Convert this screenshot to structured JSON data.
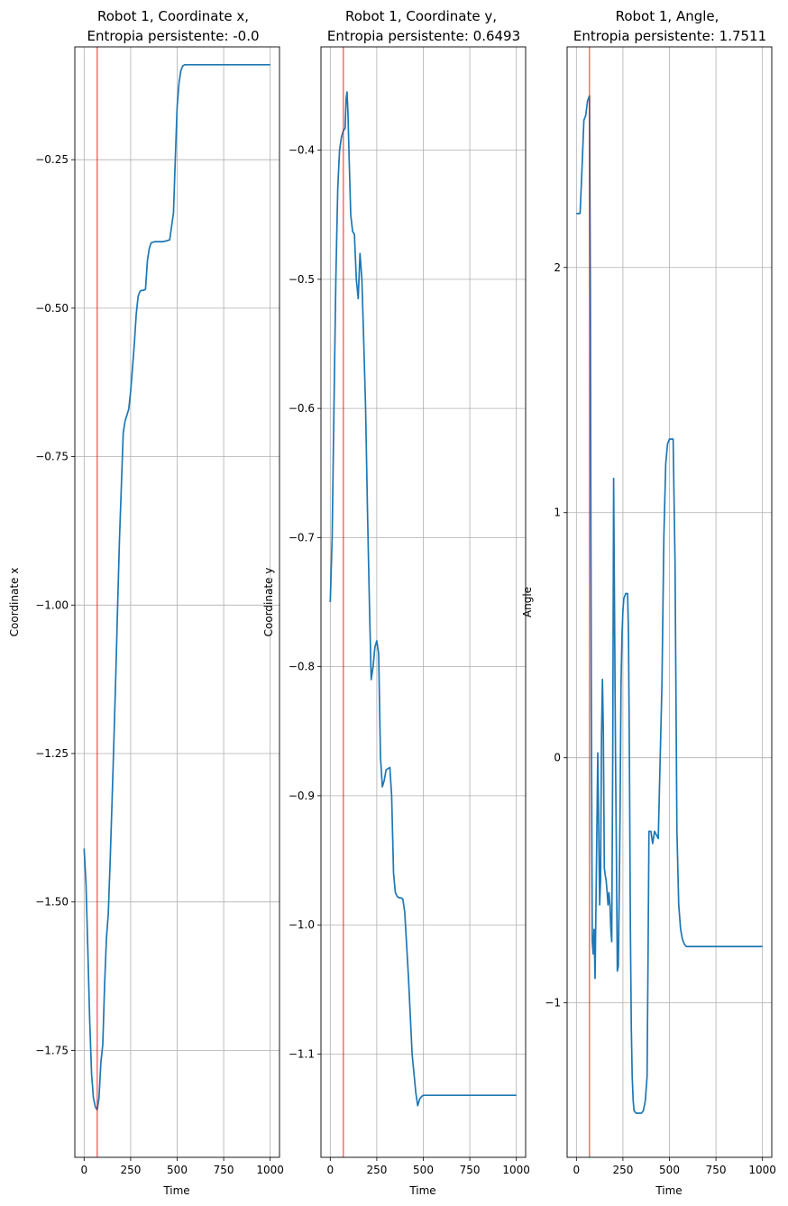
{
  "figure": {
    "background": "#ffffff"
  },
  "chart_data": [
    {
      "type": "line",
      "title_line1": "Robot 1, Coordinate x,",
      "title_line2": "Entropia persistente: -0.0",
      "xlabel": "Time",
      "ylabel": "Coordinate x",
      "xlim": [
        -50,
        1050
      ],
      "ylim": [
        -1.93,
        -0.06
      ],
      "xticks": [
        0,
        250,
        500,
        750,
        1000
      ],
      "xtick_labels": [
        "0",
        "250",
        "500",
        "750",
        "1000"
      ],
      "yticks": [
        -1.75,
        -1.5,
        -1.25,
        -1.0,
        -0.75,
        -0.5,
        -0.25
      ],
      "ytick_labels": [
        "−1.75",
        "−1.50",
        "−1.25",
        "−1.00",
        "−0.75",
        "−0.50",
        "−0.25"
      ],
      "grid": true,
      "vline": {
        "x": 70,
        "color": "#ff0000",
        "alpha": 0.55
      },
      "series": [
        {
          "color": "#1f77b4",
          "x": [
            0,
            10,
            20,
            30,
            40,
            50,
            60,
            70,
            80,
            90,
            100,
            110,
            120,
            130,
            140,
            150,
            160,
            170,
            180,
            190,
            200,
            210,
            220,
            230,
            240,
            250,
            260,
            270,
            280,
            290,
            300,
            310,
            320,
            330,
            340,
            350,
            360,
            380,
            400,
            420,
            440,
            460,
            480,
            490,
            500,
            510,
            520,
            530,
            540,
            560,
            600,
            700,
            800,
            900,
            1000
          ],
          "y": [
            -1.41,
            -1.47,
            -1.58,
            -1.7,
            -1.79,
            -1.83,
            -1.845,
            -1.85,
            -1.83,
            -1.77,
            -1.74,
            -1.64,
            -1.56,
            -1.52,
            -1.43,
            -1.33,
            -1.23,
            -1.12,
            -1.0,
            -0.89,
            -0.8,
            -0.71,
            -0.69,
            -0.68,
            -0.67,
            -0.64,
            -0.6,
            -0.56,
            -0.51,
            -0.48,
            -0.472,
            -0.47,
            -0.47,
            -0.468,
            -0.42,
            -0.4,
            -0.39,
            -0.388,
            -0.388,
            -0.388,
            -0.387,
            -0.385,
            -0.34,
            -0.25,
            -0.16,
            -0.12,
            -0.1,
            -0.092,
            -0.09,
            -0.09,
            -0.09,
            -0.09,
            -0.09,
            -0.09,
            -0.09
          ]
        }
      ]
    },
    {
      "type": "line",
      "title_line1": "Robot 1, Coordinate y,",
      "title_line2": "Entropia persistente: 0.6493",
      "xlabel": "Time",
      "ylabel": "Coordinate y",
      "xlim": [
        -50,
        1050
      ],
      "ylim": [
        -1.18,
        -0.32
      ],
      "xticks": [
        0,
        250,
        500,
        750,
        1000
      ],
      "xtick_labels": [
        "0",
        "250",
        "500",
        "750",
        "1000"
      ],
      "yticks": [
        -1.1,
        -1.0,
        -0.9,
        -0.8,
        -0.7,
        -0.6,
        -0.5,
        -0.4
      ],
      "ytick_labels": [
        "−1.1",
        "−1.0",
        "−0.9",
        "−0.8",
        "−0.7",
        "−0.6",
        "−0.5",
        "−0.4"
      ],
      "grid": true,
      "vline": {
        "x": 70,
        "color": "#ff0000",
        "alpha": 0.55
      },
      "series": [
        {
          "color": "#1f77b4",
          "x": [
            0,
            10,
            20,
            30,
            40,
            50,
            60,
            70,
            80,
            85,
            90,
            95,
            100,
            110,
            120,
            130,
            140,
            150,
            160,
            170,
            180,
            190,
            200,
            210,
            220,
            230,
            240,
            250,
            260,
            270,
            280,
            290,
            300,
            310,
            320,
            330,
            340,
            350,
            360,
            370,
            380,
            390,
            400,
            420,
            440,
            460,
            470,
            480,
            490,
            500,
            510,
            520,
            530,
            540,
            560,
            600,
            700,
            800,
            900,
            1000
          ],
          "y": [
            -0.75,
            -0.7,
            -0.6,
            -0.5,
            -0.43,
            -0.4,
            -0.39,
            -0.385,
            -0.383,
            -0.36,
            -0.355,
            -0.37,
            -0.4,
            -0.45,
            -0.463,
            -0.465,
            -0.5,
            -0.515,
            -0.48,
            -0.5,
            -0.55,
            -0.6,
            -0.68,
            -0.75,
            -0.81,
            -0.8,
            -0.785,
            -0.78,
            -0.79,
            -0.87,
            -0.893,
            -0.888,
            -0.88,
            -0.879,
            -0.878,
            -0.9,
            -0.96,
            -0.975,
            -0.978,
            -0.979,
            -0.979,
            -0.98,
            -0.99,
            -1.04,
            -1.1,
            -1.13,
            -1.14,
            -1.135,
            -1.133,
            -1.132,
            -1.132,
            -1.132,
            -1.132,
            -1.132,
            -1.132,
            -1.132,
            -1.132,
            -1.132,
            -1.132,
            -1.132
          ]
        }
      ]
    },
    {
      "type": "line",
      "title_line1": "Robot 1, Angle,",
      "title_line2": "Entropia persistente: 1.7511",
      "xlabel": "Time",
      "ylabel": "Angle",
      "xlim": [
        -50,
        1050
      ],
      "ylim": [
        -1.63,
        2.9
      ],
      "xticks": [
        0,
        250,
        500,
        750,
        1000
      ],
      "xtick_labels": [
        "0",
        "250",
        "500",
        "750",
        "1000"
      ],
      "yticks": [
        -1,
        0,
        1,
        2
      ],
      "ytick_labels": [
        "−1",
        "0",
        "1",
        "2"
      ],
      "grid": true,
      "vline": {
        "x": 70,
        "color": "#ff0000",
        "alpha": 0.55
      },
      "series": [
        {
          "color": "#1f77b4",
          "x": [
            0,
            10,
            20,
            30,
            40,
            50,
            60,
            70,
            75,
            80,
            85,
            90,
            95,
            100,
            105,
            110,
            115,
            120,
            125,
            130,
            135,
            140,
            145,
            150,
            155,
            160,
            165,
            170,
            175,
            180,
            185,
            190,
            195,
            200,
            205,
            210,
            215,
            220,
            225,
            230,
            235,
            240,
            245,
            250,
            255,
            260,
            265,
            270,
            275,
            280,
            285,
            290,
            295,
            300,
            305,
            310,
            320,
            330,
            340,
            350,
            360,
            370,
            380,
            385,
            390,
            395,
            400,
            410,
            420,
            440,
            460,
            470,
            480,
            490,
            500,
            505,
            510,
            520,
            530,
            540,
            550,
            560,
            570,
            580,
            590,
            600,
            610,
            620,
            630,
            640,
            650,
            660,
            680,
            700,
            800,
            900,
            1000
          ],
          "y": [
            2.22,
            2.22,
            2.22,
            2.4,
            2.6,
            2.62,
            2.68,
            2.7,
            1.9,
            0.3,
            -0.75,
            -0.8,
            -0.7,
            -0.9,
            -0.6,
            -0.3,
            0.02,
            -0.3,
            -0.6,
            -0.5,
            0.1,
            0.32,
            0.1,
            -0.45,
            -0.48,
            -0.5,
            -0.55,
            -0.6,
            -0.55,
            -0.6,
            -0.7,
            -0.75,
            0.0,
            1.14,
            0.6,
            0.0,
            -0.4,
            -0.87,
            -0.85,
            -0.55,
            -0.2,
            0.3,
            0.5,
            0.6,
            0.65,
            0.66,
            0.67,
            0.67,
            0.67,
            0.5,
            0.0,
            -0.7,
            -1.1,
            -1.3,
            -1.4,
            -1.44,
            -1.45,
            -1.45,
            -1.45,
            -1.45,
            -1.44,
            -1.4,
            -1.3,
            -0.8,
            -0.3,
            -0.3,
            -0.3,
            -0.35,
            -0.3,
            -0.33,
            0.3,
            0.9,
            1.2,
            1.28,
            1.3,
            1.3,
            1.3,
            1.3,
            0.8,
            -0.3,
            -0.6,
            -0.7,
            -0.74,
            -0.76,
            -0.77,
            -0.77,
            -0.77,
            -0.77,
            -0.77,
            -0.77,
            -0.77,
            -0.77,
            -0.77,
            -0.77,
            -0.77,
            -0.77,
            -0.77
          ]
        }
      ]
    }
  ]
}
